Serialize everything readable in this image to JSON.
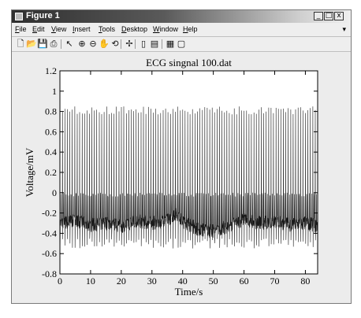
{
  "window": {
    "title": "Figure 1",
    "minimize": "_",
    "maximize": "□",
    "close": "x"
  },
  "menus": [
    "File",
    "Edit",
    "View",
    "Insert",
    "Tools",
    "Desktop",
    "Window",
    "Help"
  ],
  "menu_overflow": "▾",
  "toolbar": [
    {
      "name": "new-figure-icon",
      "glyph": "🗋"
    },
    {
      "name": "open-file-icon",
      "glyph": "📂"
    },
    {
      "name": "save-icon",
      "glyph": "💾"
    },
    {
      "name": "print-icon",
      "glyph": "⎙"
    },
    {
      "name": "edit-plot-icon",
      "glyph": "↖"
    },
    {
      "name": "zoom-in-icon",
      "glyph": "⊕"
    },
    {
      "name": "zoom-out-icon",
      "glyph": "⊖"
    },
    {
      "name": "pan-icon",
      "glyph": "✋"
    },
    {
      "name": "rotate-3d-icon",
      "glyph": "⟲"
    },
    {
      "name": "data-cursor-icon",
      "glyph": "✢"
    },
    {
      "name": "colorbar-icon",
      "glyph": "▯"
    },
    {
      "name": "legend-icon",
      "glyph": "▤"
    },
    {
      "name": "hide-plot-tools-icon",
      "glyph": "▦"
    },
    {
      "name": "show-plot-tools-icon",
      "glyph": "▢"
    }
  ],
  "chart_data": {
    "type": "line",
    "title": "ECG singnal 100.dat",
    "xlabel": "Time/s",
    "ylabel": "Voltage/mV",
    "xlim": [
      0,
      84
    ],
    "ylim": [
      -0.8,
      1.2
    ],
    "xticks": [
      0,
      10,
      20,
      30,
      40,
      50,
      60,
      70,
      80
    ],
    "yticks": [
      -0.8,
      -0.6,
      -0.4,
      -0.2,
      0,
      0.2,
      0.4,
      0.6,
      0.8,
      1,
      1.2
    ],
    "ytick_labels": [
      "-0.8",
      "-0.6",
      "-0.4",
      "-0.2",
      "0",
      "0.2",
      "0.4",
      "0.6",
      "0.8",
      "1",
      "1.2"
    ],
    "xtick_labels": [
      "0",
      "10",
      "20",
      "30",
      "40",
      "50",
      "60",
      "70",
      "80"
    ],
    "grid": false,
    "series": [
      {
        "baseline_x": [
          0,
          5,
          10,
          15,
          20,
          25,
          30,
          35,
          38,
          40,
          45,
          50,
          55,
          60,
          65,
          70,
          75,
          80,
          84
        ],
        "baseline_y": [
          -0.3,
          -0.28,
          -0.32,
          -0.3,
          -0.33,
          -0.28,
          -0.3,
          -0.27,
          -0.2,
          -0.28,
          -0.36,
          -0.38,
          -0.33,
          -0.26,
          -0.3,
          -0.28,
          -0.32,
          -0.3,
          -0.33
        ],
        "r_peak_mV": 0.85,
        "s_trough_mV": -0.55,
        "beat_interval_s": 0.8
      }
    ],
    "color": "#1a1a1a"
  }
}
